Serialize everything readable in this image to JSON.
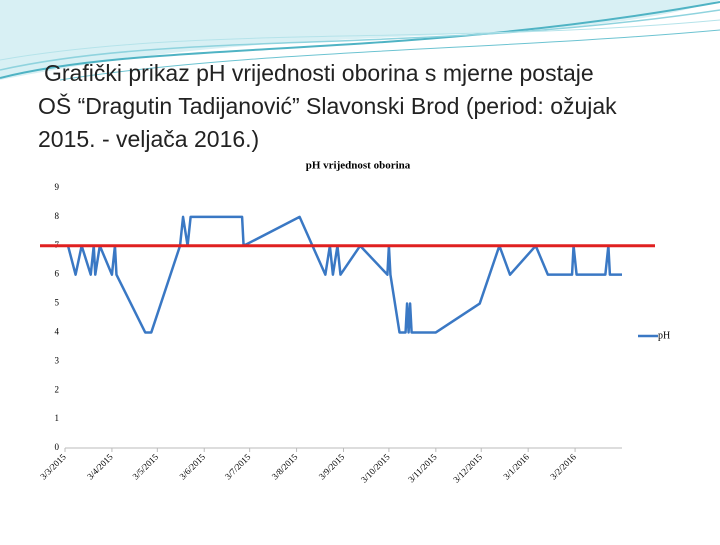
{
  "slide": {
    "title": [
      "Grafički prikaz pH vrijednosti oborina s mjerne postaje",
      "OŠ “Dragutin Tadijanović” Slavonski Brod  (period: ožujak",
      "2015. - veljača 2016.)"
    ]
  },
  "chart_data": {
    "type": "line",
    "title": "pH vrijednost oborina",
    "x": [
      "2015-03-05",
      "2015-03-10",
      "2015-03-14",
      "2015-03-20",
      "2015-03-22",
      "2015-03-23",
      "2015-03-26",
      "2015-04-03",
      "2015-04-05",
      "2015-04-06",
      "2015-04-25",
      "2015-04-29",
      "2015-05-18",
      "2015-05-20",
      "2015-05-23",
      "2015-05-25",
      "2015-06-28",
      "2015-06-29",
      "2015-08-05",
      "2015-08-22",
      "2015-08-25",
      "2015-08-27",
      "2015-08-30",
      "2015-09-01",
      "2015-09-14",
      "2015-10-02",
      "2015-10-03",
      "2015-10-04",
      "2015-10-10",
      "2015-10-14",
      "2015-10-15",
      "2015-10-16",
      "2015-10-17",
      "2015-10-18",
      "2015-11-03",
      "2015-12-02",
      "2015-12-15",
      "2015-12-22",
      "2016-01-08",
      "2016-01-16",
      "2016-02-01",
      "2016-02-02",
      "2016-02-04",
      "2016-02-23",
      "2016-02-25",
      "2016-02-26",
      "2016-03-05"
    ],
    "series": [
      {
        "name": "pH",
        "color": "#3a78c4",
        "values": [
          7,
          6,
          7,
          6,
          7,
          6,
          7,
          6,
          7,
          6,
          4,
          4,
          7,
          8,
          7,
          8,
          8,
          7,
          8,
          6,
          7,
          6,
          7,
          6,
          7,
          6,
          7,
          6,
          4,
          4,
          5,
          4,
          5,
          4,
          4,
          5,
          7,
          6,
          7,
          6,
          6,
          7,
          6,
          6,
          7,
          6,
          6
        ]
      }
    ],
    "reference_line": {
      "value": 7,
      "color": "#e02020"
    },
    "xlim": [
      "2015-03-03",
      "2016-03-05"
    ],
    "xticks": [
      {
        "value": "2015-03-03",
        "label": "3/3/2015"
      },
      {
        "value": "2015-04-03",
        "label": "3/4/2015"
      },
      {
        "value": "2015-05-03",
        "label": "3/5/2015"
      },
      {
        "value": "2015-06-03",
        "label": "3/6/2015"
      },
      {
        "value": "2015-07-03",
        "label": "3/7/2015"
      },
      {
        "value": "2015-08-03",
        "label": "3/8/2015"
      },
      {
        "value": "2015-09-03",
        "label": "3/9/2015"
      },
      {
        "value": "2015-10-03",
        "label": "3/10/2015"
      },
      {
        "value": "2015-11-03",
        "label": "3/11/2015"
      },
      {
        "value": "2015-12-03",
        "label": "3/12/2015"
      },
      {
        "value": "2016-01-03",
        "label": "3/1/2016"
      },
      {
        "value": "2016-02-03",
        "label": "3/2/2016"
      }
    ],
    "ylim": [
      0,
      9
    ],
    "yticks": [
      0,
      1,
      2,
      3,
      4,
      5,
      6,
      7,
      8,
      9
    ],
    "grid": false
  }
}
